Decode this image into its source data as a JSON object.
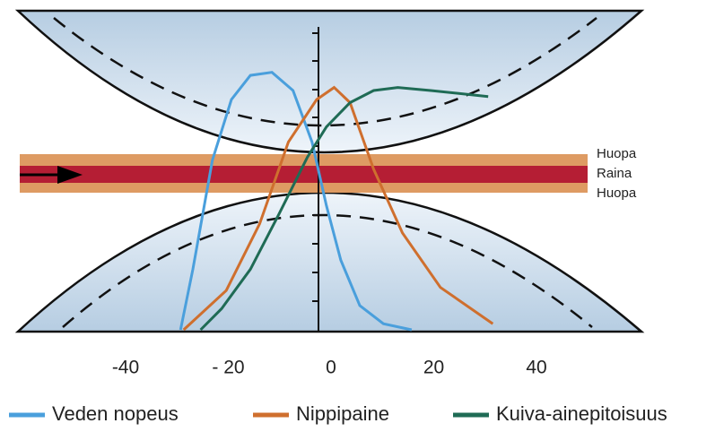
{
  "chart_data": {
    "type": "line",
    "xlim": [
      -40,
      40
    ],
    "xticks": [
      -40,
      {
        "value": -20,
        "label": "- 20"
      },
      0,
      20,
      40
    ],
    "ylim": [
      0,
      10
    ],
    "annotations": [
      "Huopa",
      "Raina",
      "Huopa"
    ],
    "series": [
      {
        "name": "Veden nopeus",
        "color": "#4a9fdc",
        "x": [
          -29.3,
          -26.9,
          -23.1,
          -19.4,
          -15.7,
          -11.5,
          -7.4,
          -3.7,
          -0.9,
          1.9,
          5.6,
          10.2,
          15.7
        ],
        "values": [
          0,
          2.0,
          5.6,
          7.6,
          8.4,
          8.5,
          7.9,
          6.2,
          4.1,
          2.3,
          0.8,
          0.2,
          0
        ]
      },
      {
        "name": "Nippipaine",
        "color": "#cf6f2e",
        "x": [
          -28.7,
          -20.4,
          -13.9,
          -8.3,
          -2.8,
          0.6,
          3.7,
          8.3,
          13.9,
          21.3,
          31.5
        ],
        "values": [
          0,
          1.3,
          3.5,
          6.2,
          7.6,
          8.0,
          7.5,
          5.3,
          3.2,
          1.4,
          0.2
        ]
      },
      {
        "name": "Kuiva-ainepitoisuus",
        "color": "#1f6b55",
        "x": [
          -25.4,
          -21.3,
          -15.7,
          -10.2,
          -4.6,
          -0.9,
          3.7,
          8.3,
          13.0,
          19.4,
          30.6
        ],
        "values": [
          0,
          0.7,
          2.0,
          3.8,
          5.7,
          6.7,
          7.5,
          7.9,
          8.0,
          7.9,
          7.7
        ]
      }
    ]
  }
}
